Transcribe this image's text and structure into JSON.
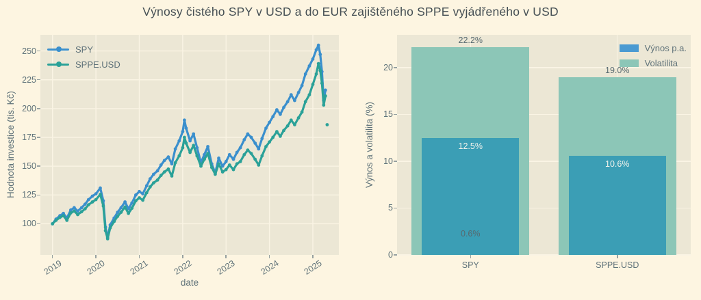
{
  "title": "Výnosy čistého SPY v USD a do EUR zajištěného SPPE vyjádřeného v USD",
  "colors": {
    "figure_bg": "#fdf5e1",
    "panel_bg": "#ece7d5",
    "grid": "#faf4e4",
    "tick_mark": "#97a1a1",
    "text": "#5f7279",
    "title_text": "#454f54",
    "spy_line": "#3a8fcd",
    "sppe_line": "#2aa198",
    "volatilita_bar": "#8cc6b7",
    "vynos_bar": "#3b9eb5",
    "vynos_legend_patch": "#4a9ad2",
    "bar_label_light": "#f2f3ec",
    "bar_label_dark": "#57696f"
  },
  "chart_data": [
    {
      "type": "line",
      "xlabel": "date",
      "ylabel": "Hodnota investice (tis. Kč)",
      "xlim": [
        2018.72,
        2025.6
      ],
      "ylim": [
        73,
        264
      ],
      "xticks": [
        2019,
        2020,
        2021,
        2022,
        2023,
        2024,
        2025
      ],
      "yticks": [
        100,
        125,
        150,
        175,
        200,
        225,
        250
      ],
      "grid": true,
      "legend_position": "upper left",
      "x": [
        2019.0,
        2019.08,
        2019.17,
        2019.25,
        2019.33,
        2019.42,
        2019.5,
        2019.58,
        2019.67,
        2019.75,
        2019.83,
        2019.92,
        2020.0,
        2020.1,
        2020.17,
        2020.22,
        2020.27,
        2020.33,
        2020.42,
        2020.5,
        2020.58,
        2020.67,
        2020.75,
        2020.83,
        2020.92,
        2021.0,
        2021.08,
        2021.17,
        2021.25,
        2021.33,
        2021.42,
        2021.5,
        2021.58,
        2021.67,
        2021.75,
        2021.83,
        2021.92,
        2022.0,
        2022.04,
        2022.08,
        2022.17,
        2022.25,
        2022.33,
        2022.42,
        2022.5,
        2022.58,
        2022.67,
        2022.75,
        2022.83,
        2022.92,
        2023.0,
        2023.08,
        2023.17,
        2023.25,
        2023.33,
        2023.42,
        2023.5,
        2023.58,
        2023.67,
        2023.75,
        2023.83,
        2023.92,
        2024.0,
        2024.08,
        2024.17,
        2024.25,
        2024.33,
        2024.42,
        2024.5,
        2024.58,
        2024.67,
        2024.75,
        2024.83,
        2024.92,
        2025.0,
        2025.08,
        2025.13,
        2025.17,
        2025.21,
        2025.25,
        2025.29,
        2025.31,
        2025.33
      ],
      "series": [
        {
          "name": "SPY",
          "values": [
            100,
            104,
            107,
            109,
            105,
            112,
            114,
            111,
            114,
            117,
            121,
            124,
            126,
            131,
            120,
            97,
            88,
            99,
            105,
            110,
            114,
            119,
            113,
            118,
            125,
            128,
            126,
            133,
            139,
            143,
            146,
            151,
            155,
            158,
            152,
            165,
            172,
            180,
            190,
            183,
            172,
            178,
            166,
            153,
            160,
            167,
            152,
            144,
            157,
            150,
            154,
            160,
            156,
            162,
            166,
            173,
            178,
            175,
            170,
            165,
            174,
            183,
            188,
            193,
            199,
            195,
            201,
            206,
            212,
            207,
            214,
            220,
            230,
            237,
            243,
            251,
            255,
            247,
            232,
            207,
            216,
            null,
            null
          ]
        },
        {
          "name": "SPPE.USD",
          "values": [
            100,
            103,
            105.5,
            107,
            103,
            109.5,
            111,
            108,
            110.5,
            113,
            116.5,
            119,
            121,
            125.5,
            115.5,
            94,
            87,
            96.5,
            102,
            106.5,
            110,
            114.5,
            109,
            113.5,
            120,
            122.5,
            120.5,
            127,
            132,
            135.5,
            138,
            142,
            145,
            147.5,
            141.5,
            153,
            159,
            166,
            175,
            170,
            162,
            168,
            159,
            150,
            156,
            161,
            149,
            143,
            152,
            145,
            147,
            151,
            147,
            152,
            154,
            160,
            164,
            161,
            156,
            151,
            159,
            167,
            171,
            175,
            180,
            176,
            181,
            185,
            190,
            186,
            192,
            197,
            206,
            212,
            221,
            230,
            239,
            233,
            222,
            203,
            211,
            null,
            186
          ]
        }
      ]
    },
    {
      "type": "bar",
      "categories": [
        "SPY",
        "SPPE.USD"
      ],
      "ylabel": "Výnos a volatilita (%)",
      "ylim": [
        0,
        23.5
      ],
      "yticks": [
        0,
        5,
        10,
        15,
        20
      ],
      "grid": true,
      "legend_position": "upper right",
      "series": [
        {
          "name": "Výnos p.a.",
          "values": [
            12.5,
            10.6
          ],
          "labels": [
            "12.5%",
            "10.6%"
          ]
        },
        {
          "name": "Volatilita",
          "values": [
            22.2,
            19.0
          ],
          "labels": [
            "22.2%",
            "19.0%"
          ]
        }
      ],
      "annotations": [
        {
          "text": "0.6%",
          "category_index": 0,
          "y": 2.2
        }
      ]
    }
  ]
}
